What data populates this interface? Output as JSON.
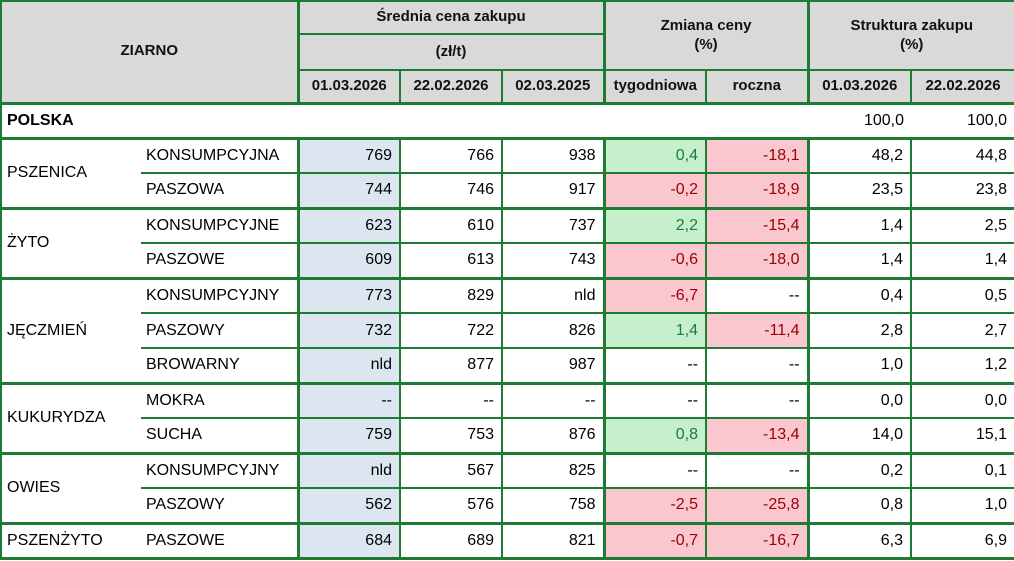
{
  "header": {
    "grain": "ZIARNO",
    "sections": [
      {
        "title": "Średnia cena zakupu",
        "unit": "(zł/t)",
        "columns": [
          "01.03.2026",
          "22.02.2026",
          "02.03.2025"
        ]
      },
      {
        "title": "Zmiana ceny",
        "unit": "(%)",
        "columns": [
          "tygodniowa",
          "roczna"
        ]
      },
      {
        "title": "Struktura zakupu",
        "unit": "(%)",
        "columns": [
          "01.03.2026",
          "22.02.2026"
        ]
      }
    ]
  },
  "chart_data": {
    "type": "table",
    "summary": {
      "label": "POLSKA",
      "structure": [
        "100,0",
        "100,0"
      ]
    },
    "groups": [
      {
        "grain": "PSZENICA",
        "rows": [
          {
            "type": "KONSUMPCYJNA",
            "prices": [
              "769",
              "766",
              "938"
            ],
            "change_week": {
              "value": "0,4",
              "trend": "up"
            },
            "change_year": {
              "value": "-18,1",
              "trend": "down"
            },
            "structure": [
              "48,2",
              "44,8"
            ]
          },
          {
            "type": "PASZOWA",
            "prices": [
              "744",
              "746",
              "917"
            ],
            "change_week": {
              "value": "-0,2",
              "trend": "down"
            },
            "change_year": {
              "value": "-18,9",
              "trend": "down"
            },
            "structure": [
              "23,5",
              "23,8"
            ]
          }
        ]
      },
      {
        "grain": "ŻYTO",
        "rows": [
          {
            "type": "KONSUMPCYJNE",
            "prices": [
              "623",
              "610",
              "737"
            ],
            "change_week": {
              "value": "2,2",
              "trend": "up"
            },
            "change_year": {
              "value": "-15,4",
              "trend": "down"
            },
            "structure": [
              "1,4",
              "2,5"
            ]
          },
          {
            "type": "PASZOWE",
            "prices": [
              "609",
              "613",
              "743"
            ],
            "change_week": {
              "value": "-0,6",
              "trend": "down"
            },
            "change_year": {
              "value": "-18,0",
              "trend": "down"
            },
            "structure": [
              "1,4",
              "1,4"
            ]
          }
        ]
      },
      {
        "grain": "JĘCZMIEŃ",
        "rows": [
          {
            "type": "KONSUMPCYJNY",
            "prices": [
              "773",
              "829",
              "nld"
            ],
            "change_week": {
              "value": "-6,7",
              "trend": "down"
            },
            "change_year": {
              "value": "--",
              "trend": "none"
            },
            "structure": [
              "0,4",
              "0,5"
            ]
          },
          {
            "type": "PASZOWY",
            "prices": [
              "732",
              "722",
              "826"
            ],
            "change_week": {
              "value": "1,4",
              "trend": "up"
            },
            "change_year": {
              "value": "-11,4",
              "trend": "down"
            },
            "structure": [
              "2,8",
              "2,7"
            ]
          },
          {
            "type": "BROWARNY",
            "prices": [
              "nld",
              "877",
              "987"
            ],
            "change_week": {
              "value": "--",
              "trend": "none"
            },
            "change_year": {
              "value": "--",
              "trend": "none"
            },
            "structure": [
              "1,0",
              "1,2"
            ]
          }
        ]
      },
      {
        "grain": "KUKURYDZA",
        "rows": [
          {
            "type": "MOKRA",
            "prices": [
              "--",
              "--",
              "--"
            ],
            "change_week": {
              "value": "--",
              "trend": "none"
            },
            "change_year": {
              "value": "--",
              "trend": "none"
            },
            "structure": [
              "0,0",
              "0,0"
            ]
          },
          {
            "type": "SUCHA",
            "prices": [
              "759",
              "753",
              "876"
            ],
            "change_week": {
              "value": "0,8",
              "trend": "up"
            },
            "change_year": {
              "value": "-13,4",
              "trend": "down"
            },
            "structure": [
              "14,0",
              "15,1"
            ]
          }
        ]
      },
      {
        "grain": "OWIES",
        "rows": [
          {
            "type": "KONSUMPCYJNY",
            "prices": [
              "nld",
              "567",
              "825"
            ],
            "change_week": {
              "value": "--",
              "trend": "none"
            },
            "change_year": {
              "value": "--",
              "trend": "none"
            },
            "structure": [
              "0,2",
              "0,1"
            ]
          },
          {
            "type": "PASZOWY",
            "prices": [
              "562",
              "576",
              "758"
            ],
            "change_week": {
              "value": "-2,5",
              "trend": "down"
            },
            "change_year": {
              "value": "-25,8",
              "trend": "down"
            },
            "structure": [
              "0,8",
              "1,0"
            ]
          }
        ]
      },
      {
        "grain": "PSZENŻYTO",
        "rows": [
          {
            "type": "PASZOWE",
            "prices": [
              "684",
              "689",
              "821"
            ],
            "change_week": {
              "value": "-0,7",
              "trend": "down"
            },
            "change_year": {
              "value": "-16,7",
              "trend": "down"
            },
            "structure": [
              "6,3",
              "6,9"
            ]
          }
        ]
      }
    ]
  },
  "colors": {
    "border_green": "#1E7B34",
    "header_bg": "#D9D9D9",
    "highlight_col_bg": "#DCE5F0",
    "positive_bg": "#C6EFCE",
    "positive_text": "#1E7B34",
    "negative_bg": "#FBC7CE",
    "negative_text": "#9C0006"
  }
}
